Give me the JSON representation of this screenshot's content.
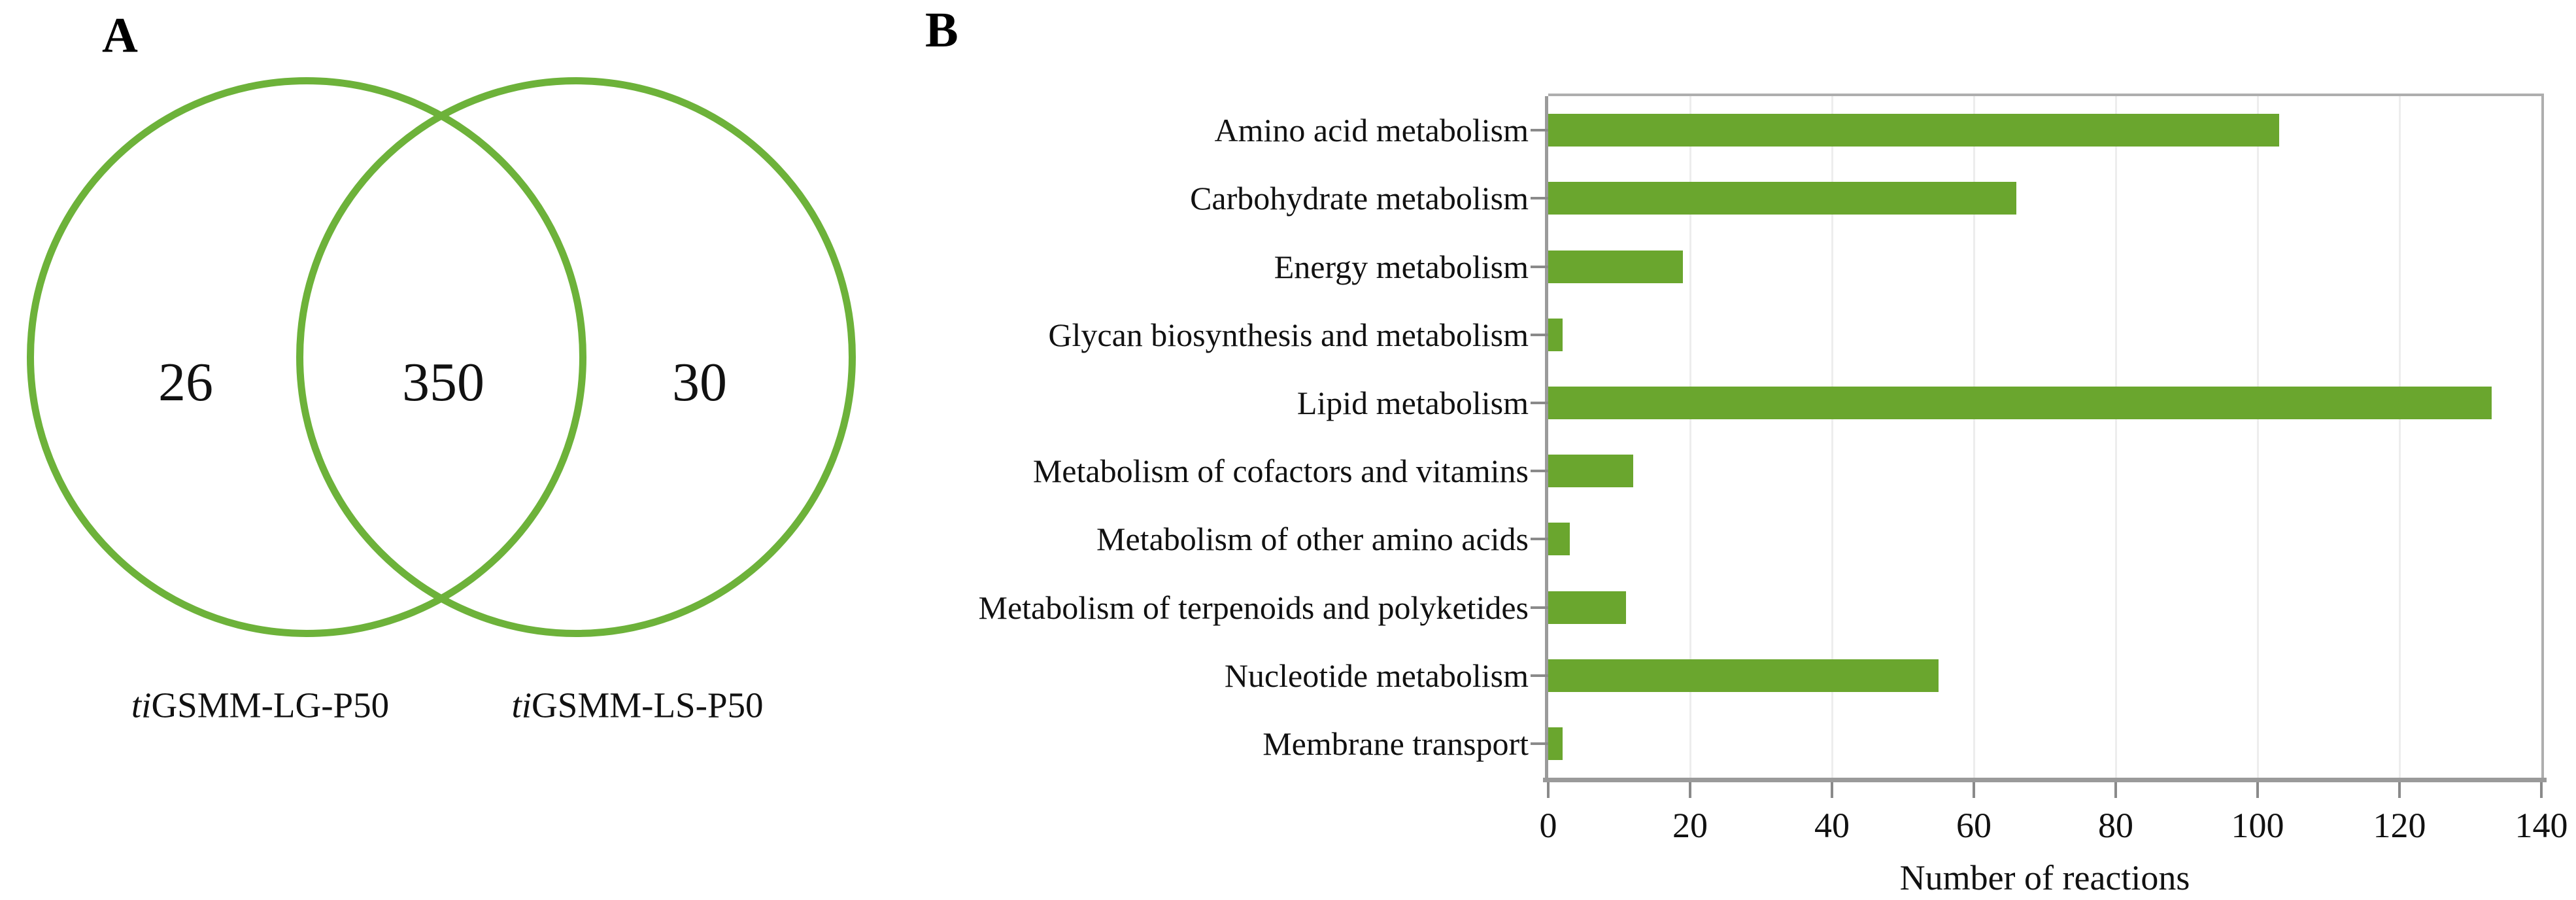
{
  "panelA": {
    "label": "A",
    "venn": {
      "left_only_count": "26",
      "intersection_count": "350",
      "right_only_count": "30",
      "left_label": {
        "italic": "ti",
        "text": "GSMM-LG-P50"
      },
      "right_label": {
        "italic": "ti",
        "text": "GSMM-LS-P50"
      },
      "circle_color": "#6db23a"
    }
  },
  "panelB": {
    "label": "B"
  },
  "chart_data": {
    "type": "bar",
    "orientation": "horizontal",
    "title": "",
    "categories": [
      "Amino acid metabolism",
      "Carbohydrate metabolism",
      "Energy metabolism",
      "Glycan biosynthesis and metabolism",
      "Lipid metabolism",
      "Metabolism of cofactors and vitamins",
      "Metabolism of other amino acids",
      "Metabolism of terpenoids and polyketides",
      "Nucleotide metabolism",
      "Membrane transport"
    ],
    "values": [
      103,
      66,
      19,
      2,
      133,
      12,
      3,
      11,
      55,
      2
    ],
    "xlabel": "Number of reactions",
    "ylabel": "",
    "xlim": [
      0,
      140
    ],
    "xticks": [
      0,
      20,
      40,
      60,
      80,
      100,
      120,
      140
    ],
    "bar_color": "#6aa62e",
    "grid": "faint-vertical-major",
    "legend": "none"
  }
}
